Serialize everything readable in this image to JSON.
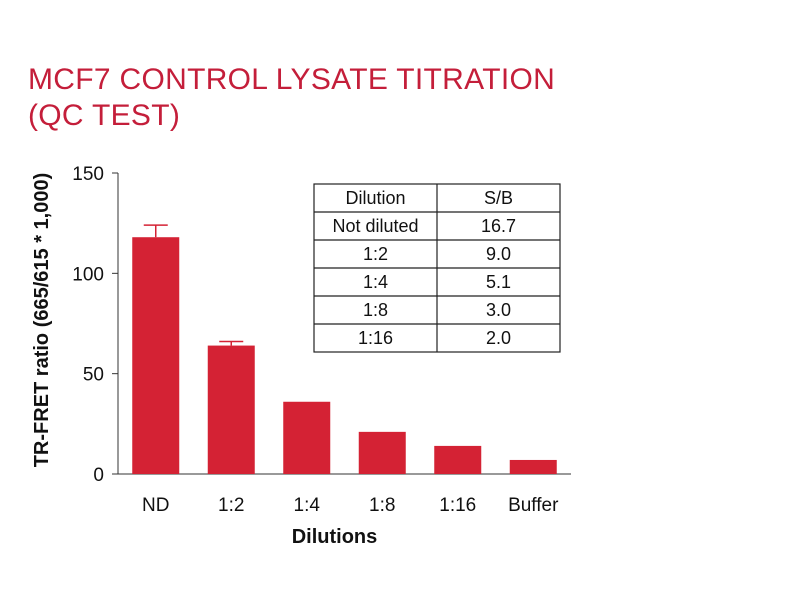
{
  "title_line1": "MCF7 CONTROL LYSATE TITRATION",
  "title_line2": "(QC TEST)",
  "chart_data": {
    "type": "bar",
    "categories": [
      "ND",
      "1:2",
      "1:4",
      "1:8",
      "1:16",
      "Buffer"
    ],
    "values": [
      118,
      64,
      36,
      21,
      14,
      7
    ],
    "error_upper": [
      124,
      66,
      null,
      null,
      null,
      null
    ],
    "xlabel": "Dilutions",
    "ylabel": "TR-FRET ratio (665/615 * 1,000)",
    "ylim": [
      0,
      150
    ],
    "yticks": [
      0,
      50,
      100,
      150
    ],
    "grid": false,
    "bar_color": "#d42234",
    "table": {
      "headers": [
        "Dilution",
        "S/B"
      ],
      "rows": [
        [
          "Not diluted",
          "16.7"
        ],
        [
          "1:2",
          "9.0"
        ],
        [
          "1:4",
          "5.1"
        ],
        [
          "1:8",
          "3.0"
        ],
        [
          "1:16",
          "2.0"
        ]
      ]
    }
  }
}
